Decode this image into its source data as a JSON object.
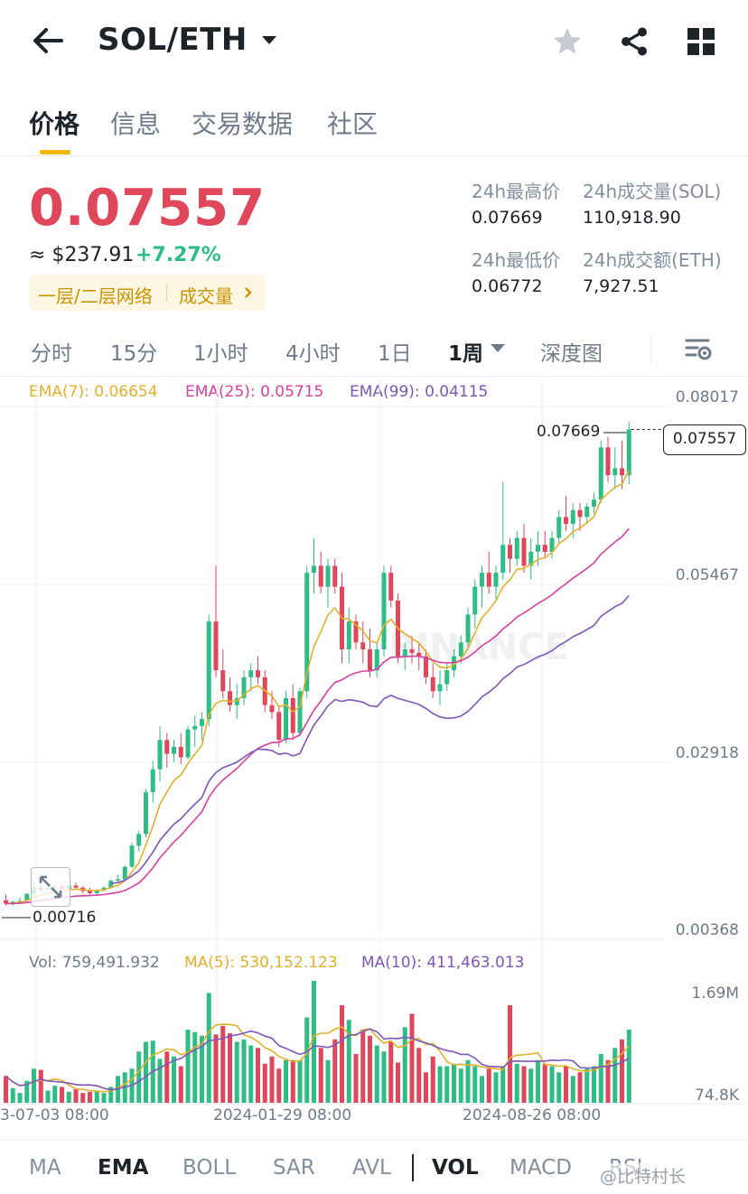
{
  "header": {
    "pair": "SOL/ETH"
  },
  "tabs": [
    "价格",
    "信息",
    "交易数据",
    "社区"
  ],
  "price": {
    "last": "0.07557",
    "usd": "≈ $237.91",
    "change": "+7.27%",
    "tag_layer": "一层/二层网络",
    "tag_volume": "成交量"
  },
  "stats": {
    "high_label": "24h最高价",
    "high": "0.07669",
    "low_label": "24h最低价",
    "low": "0.06772",
    "vol_sol_label": "24h成交量(SOL)",
    "vol_sol": "110,918.90",
    "vol_eth_label": "24h成交额(ETH)",
    "vol_eth": "7,927.51"
  },
  "intervals": [
    "分时",
    "15分",
    "1小时",
    "4小时",
    "1日",
    "1周",
    "深度图"
  ],
  "ema_legend": {
    "ema7": "EMA(7): 0.06654",
    "ema25": "EMA(25): 0.05715",
    "ema99": "EMA(99): 0.04115"
  },
  "price_axis": [
    "0.08017",
    "0.05467",
    "0.02918",
    "0.00368"
  ],
  "markers": {
    "high": "0.07669",
    "low": "0.00716",
    "current": "0.07557"
  },
  "vol_legend": {
    "vol": "Vol: 759,491.932",
    "ma5": "MA(5): 530,152.123",
    "ma10": "MA(10): 411,463.013"
  },
  "vol_axis": [
    "1.69M",
    "74.8K"
  ],
  "x_axis": [
    "3-07-03 08:00",
    "2024-01-29 08:00",
    "2024-08-26 08:00"
  ],
  "indicators": [
    "MA",
    "EMA",
    "BOLL",
    "SAR",
    "AVL",
    "VOL",
    "MACD",
    "RSI"
  ],
  "watermark": "BINANCE",
  "overlay_text": "@比特村长",
  "colors": {
    "up": "#2ebd85",
    "down": "#e0475a",
    "ema7": "#e3b02c",
    "ema25": "#d8409f",
    "ema99": "#7d57b8",
    "accent": "#f0b90b"
  },
  "chart_data": {
    "type": "candlestick",
    "interval": "1w",
    "ylim": [
      0.00368,
      0.08017
    ],
    "candles": [
      [
        0.008,
        0.0088,
        0.0072,
        0.0075
      ],
      [
        0.0075,
        0.0079,
        0.0072,
        0.0078
      ],
      [
        0.0078,
        0.0084,
        0.0076,
        0.0079
      ],
      [
        0.0079,
        0.009,
        0.0078,
        0.0089
      ],
      [
        0.0089,
        0.0105,
        0.0087,
        0.0098
      ],
      [
        0.0098,
        0.0103,
        0.0092,
        0.0095
      ],
      [
        0.0095,
        0.01,
        0.0092,
        0.0098
      ],
      [
        0.0098,
        0.0102,
        0.0094,
        0.01
      ],
      [
        0.01,
        0.0104,
        0.0095,
        0.0096
      ],
      [
        0.0096,
        0.0102,
        0.0093,
        0.0101
      ],
      [
        0.0101,
        0.0105,
        0.0096,
        0.0098
      ],
      [
        0.0098,
        0.01,
        0.009,
        0.0093
      ],
      [
        0.0093,
        0.0098,
        0.0088,
        0.009
      ],
      [
        0.009,
        0.0096,
        0.0088,
        0.0094
      ],
      [
        0.0094,
        0.01,
        0.0092,
        0.0098
      ],
      [
        0.0098,
        0.011,
        0.0096,
        0.0108
      ],
      [
        0.0108,
        0.0116,
        0.0104,
        0.011
      ],
      [
        0.011,
        0.013,
        0.0108,
        0.0128
      ],
      [
        0.0128,
        0.0162,
        0.0126,
        0.0158
      ],
      [
        0.0158,
        0.018,
        0.015,
        0.0175
      ],
      [
        0.0175,
        0.024,
        0.017,
        0.0235
      ],
      [
        0.0235,
        0.028,
        0.022,
        0.0268
      ],
      [
        0.0268,
        0.033,
        0.025,
        0.031
      ],
      [
        0.031,
        0.032,
        0.027,
        0.029
      ],
      [
        0.029,
        0.031,
        0.0278,
        0.03
      ],
      [
        0.03,
        0.032,
        0.0275,
        0.0285
      ],
      [
        0.0285,
        0.033,
        0.0282,
        0.0325
      ],
      [
        0.0325,
        0.0345,
        0.03,
        0.033
      ],
      [
        0.033,
        0.035,
        0.031,
        0.034
      ],
      [
        0.034,
        0.049,
        0.033,
        0.048
      ],
      [
        0.048,
        0.056,
        0.04,
        0.041
      ],
      [
        0.041,
        0.044,
        0.037,
        0.038
      ],
      [
        0.038,
        0.04,
        0.035,
        0.036
      ],
      [
        0.036,
        0.039,
        0.034,
        0.037
      ],
      [
        0.037,
        0.041,
        0.036,
        0.04
      ],
      [
        0.04,
        0.042,
        0.038,
        0.041
      ],
      [
        0.041,
        0.043,
        0.039,
        0.04
      ],
      [
        0.04,
        0.041,
        0.035,
        0.036
      ],
      [
        0.036,
        0.038,
        0.034,
        0.035
      ],
      [
        0.035,
        0.036,
        0.03,
        0.031
      ],
      [
        0.031,
        0.038,
        0.0305,
        0.037
      ],
      [
        0.037,
        0.039,
        0.031,
        0.032
      ],
      [
        0.032,
        0.0385,
        0.0315,
        0.038
      ],
      [
        0.038,
        0.056,
        0.037,
        0.055
      ],
      [
        0.055,
        0.06,
        0.052,
        0.056
      ],
      [
        0.056,
        0.058,
        0.052,
        0.053
      ],
      [
        0.053,
        0.057,
        0.05,
        0.056
      ],
      [
        0.056,
        0.057,
        0.052,
        0.053
      ],
      [
        0.053,
        0.055,
        0.042,
        0.044
      ],
      [
        0.044,
        0.05,
        0.042,
        0.048
      ],
      [
        0.048,
        0.049,
        0.044,
        0.045
      ],
      [
        0.045,
        0.048,
        0.042,
        0.044
      ],
      [
        0.044,
        0.047,
        0.04,
        0.041
      ],
      [
        0.041,
        0.045,
        0.04,
        0.044
      ],
      [
        0.044,
        0.056,
        0.043,
        0.055
      ],
      [
        0.055,
        0.056,
        0.05,
        0.051
      ],
      [
        0.051,
        0.052,
        0.042,
        0.043
      ],
      [
        0.043,
        0.045,
        0.041,
        0.044
      ],
      [
        0.044,
        0.046,
        0.042,
        0.0435
      ],
      [
        0.0435,
        0.045,
        0.041,
        0.043
      ],
      [
        0.043,
        0.044,
        0.039,
        0.04
      ],
      [
        0.04,
        0.042,
        0.037,
        0.038
      ],
      [
        0.038,
        0.041,
        0.036,
        0.039
      ],
      [
        0.039,
        0.042,
        0.038,
        0.041
      ],
      [
        0.041,
        0.044,
        0.04,
        0.043
      ],
      [
        0.043,
        0.046,
        0.042,
        0.045
      ],
      [
        0.045,
        0.05,
        0.044,
        0.049
      ],
      [
        0.049,
        0.054,
        0.047,
        0.053
      ],
      [
        0.053,
        0.056,
        0.05,
        0.055
      ],
      [
        0.055,
        0.058,
        0.052,
        0.053
      ],
      [
        0.053,
        0.056,
        0.051,
        0.055
      ],
      [
        0.055,
        0.068,
        0.054,
        0.059
      ],
      [
        0.059,
        0.06,
        0.055,
        0.057
      ],
      [
        0.057,
        0.061,
        0.056,
        0.06
      ],
      [
        0.06,
        0.062,
        0.055,
        0.056
      ],
      [
        0.056,
        0.06,
        0.054,
        0.058
      ],
      [
        0.058,
        0.061,
        0.056,
        0.059
      ],
      [
        0.059,
        0.061,
        0.057,
        0.058
      ],
      [
        0.058,
        0.061,
        0.057,
        0.06
      ],
      [
        0.06,
        0.064,
        0.059,
        0.063
      ],
      [
        0.063,
        0.066,
        0.061,
        0.062
      ],
      [
        0.062,
        0.065,
        0.06,
        0.064
      ],
      [
        0.064,
        0.065,
        0.061,
        0.063
      ],
      [
        0.063,
        0.065,
        0.062,
        0.0645
      ],
      [
        0.0645,
        0.0665,
        0.0635,
        0.0655
      ],
      [
        0.0655,
        0.074,
        0.065,
        0.073
      ],
      [
        0.073,
        0.0745,
        0.068,
        0.069
      ],
      [
        0.069,
        0.073,
        0.067,
        0.07
      ],
      [
        0.07,
        0.074,
        0.067,
        0.069
      ],
      [
        0.069,
        0.07669,
        0.0677,
        0.07557
      ]
    ],
    "volumes": [
      0.22,
      0.12,
      0.08,
      0.18,
      0.28,
      0.27,
      0.1,
      0.14,
      0.13,
      0.09,
      0.11,
      0.08,
      0.09,
      0.1,
      0.08,
      0.13,
      0.22,
      0.25,
      0.28,
      0.42,
      0.5,
      0.51,
      0.36,
      0.42,
      0.38,
      0.3,
      0.6,
      0.58,
      0.55,
      0.9,
      0.56,
      0.63,
      0.57,
      0.5,
      0.52,
      0.47,
      0.45,
      0.32,
      0.38,
      0.28,
      0.35,
      0.35,
      0.35,
      0.7,
      1.0,
      0.45,
      0.35,
      0.52,
      0.8,
      0.68,
      0.4,
      0.6,
      0.55,
      0.47,
      0.42,
      0.5,
      0.33,
      0.62,
      0.73,
      0.45,
      0.25,
      0.38,
      0.3,
      0.3,
      0.32,
      0.28,
      0.35,
      0.3,
      0.22,
      0.28,
      0.25,
      0.3,
      0.8,
      0.32,
      0.3,
      0.28,
      0.35,
      0.32,
      0.3,
      0.25,
      0.3,
      0.22,
      0.25,
      0.28,
      0.3,
      0.4,
      0.35,
      0.45,
      0.52,
      0.6
    ]
  }
}
